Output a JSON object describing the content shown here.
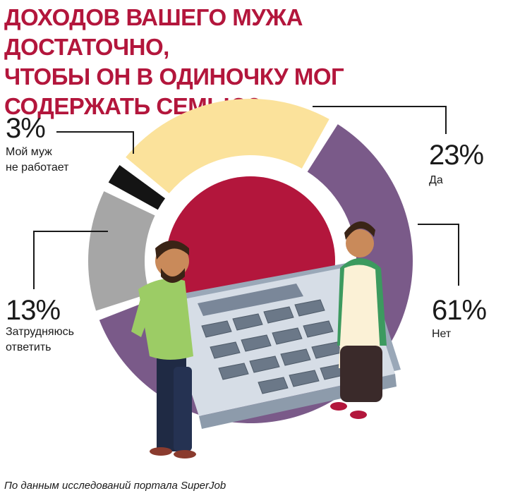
{
  "title_lines": [
    "ДОХОДОВ ВАШЕГО МУЖА ДОСТАТОЧНО,",
    "ЧТОБЫ ОН В ОДИНОЧКУ МОГ",
    "СОДЕРЖАТЬ СЕМЬЮ?"
  ],
  "source": "По данным исследований портала SuperJob",
  "colors": {
    "title": "#b3163c",
    "center": "#b3163c",
    "yes": "#fbe29b",
    "no": "#7a5a89",
    "hard": "#a6a6a6",
    "not_working": "#141414"
  },
  "chart_data": {
    "type": "pie",
    "style": "donut",
    "slices": [
      {
        "label": "Да",
        "value": 23,
        "display": "23%",
        "color": "#fbe29b"
      },
      {
        "label": "Нет",
        "value": 61,
        "display": "61%",
        "color": "#7a5a89"
      },
      {
        "label": "Затрудняюсь\nответить",
        "value": 13,
        "display": "13%",
        "color": "#a6a6a6"
      },
      {
        "label": "Мой муж\nне работает",
        "value": 3,
        "display": "3%",
        "color": "#141414"
      }
    ]
  },
  "illustration": {
    "subject": "man and woman holding a large calculator",
    "icons": [
      "man-figure",
      "woman-figure",
      "calculator"
    ]
  }
}
